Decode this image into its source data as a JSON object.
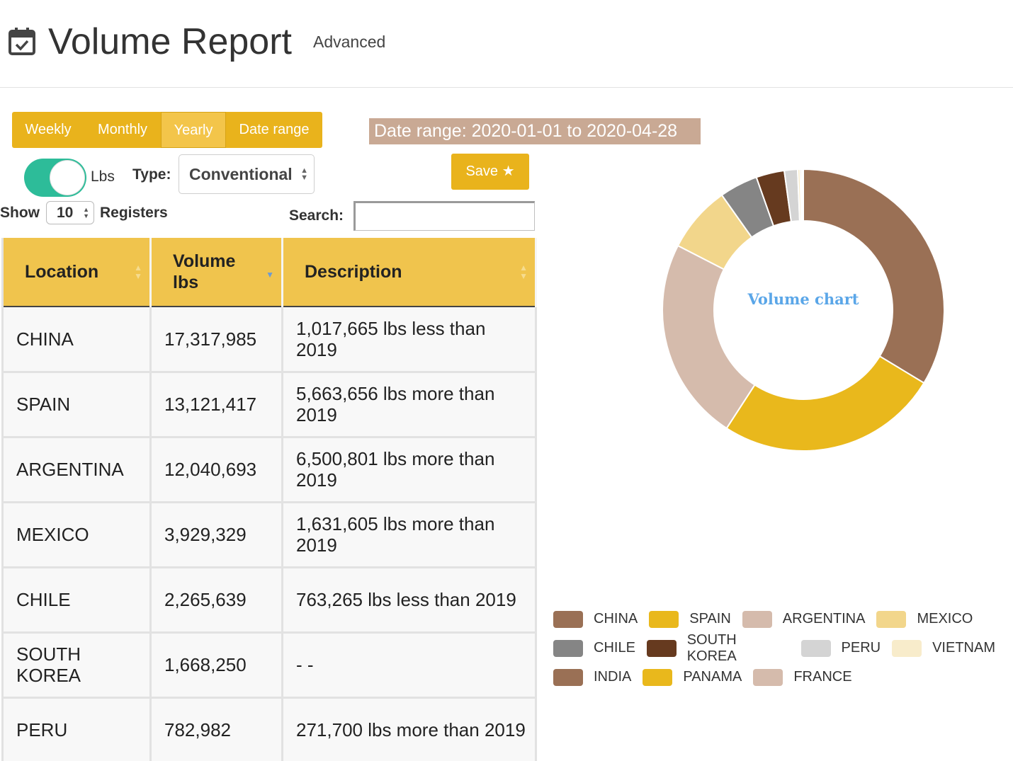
{
  "header": {
    "title": "Volume Report",
    "advanced_label": "Advanced",
    "icon": "calendar-check-icon"
  },
  "period_tabs": [
    {
      "label": "Weekly",
      "active": false
    },
    {
      "label": "Monthly",
      "active": false
    },
    {
      "label": "Yearly",
      "active": true
    },
    {
      "label": "Date range",
      "active": false
    }
  ],
  "date_range_text": "Date range: 2020-01-01 to 2020-04-28",
  "save_button": {
    "label": "Save",
    "icon": "star-icon"
  },
  "unit_toggle": {
    "label": "Lbs",
    "on": true
  },
  "type_filter": {
    "label": "Type:",
    "selected": "Conventional"
  },
  "page_size": {
    "show_label": "Show",
    "value": "10",
    "suffix": "Registers"
  },
  "search": {
    "label": "Search:",
    "value": ""
  },
  "table": {
    "columns": [
      "Location",
      "Volume\nlbs",
      "Description"
    ],
    "rows": [
      {
        "location": "CHINA",
        "volume": "17,317,985",
        "description": "1,017,665 lbs less than 2019"
      },
      {
        "location": "SPAIN",
        "volume": "13,121,417",
        "description": "5,663,656 lbs more than 2019"
      },
      {
        "location": "ARGENTINA",
        "volume": "12,040,693",
        "description": "6,500,801 lbs more than 2019"
      },
      {
        "location": "MEXICO",
        "volume": "3,929,329",
        "description": "1,631,605 lbs more than 2019"
      },
      {
        "location": "CHILE",
        "volume": "2,265,639",
        "description": "763,265 lbs less than 2019"
      },
      {
        "location": "SOUTH KOREA",
        "volume": "1,668,250",
        "description": "- -"
      },
      {
        "location": "PERU",
        "volume": "782,982",
        "description": "271,700 lbs more than 2019"
      }
    ]
  },
  "chart_data": {
    "type": "pie",
    "title": "Volume chart",
    "categories": [
      "CHINA",
      "SPAIN",
      "ARGENTINA",
      "MEXICO",
      "CHILE",
      "SOUTH KOREA",
      "PERU",
      "VIETNAM",
      "INDIA",
      "PANAMA",
      "FRANCE"
    ],
    "values": [
      17317985,
      13121417,
      12040693,
      3929329,
      2265639,
      1668250,
      782982,
      150000,
      90000,
      60000,
      30000
    ],
    "colors": [
      "#9a7055",
      "#e9b81c",
      "#d5bbac",
      "#f2d68b",
      "#858585",
      "#663a1f",
      "#d4d4d4",
      "#f8eccb",
      "#9a7055",
      "#e9b81c",
      "#d5bbac"
    ],
    "legend_position": "bottom"
  }
}
